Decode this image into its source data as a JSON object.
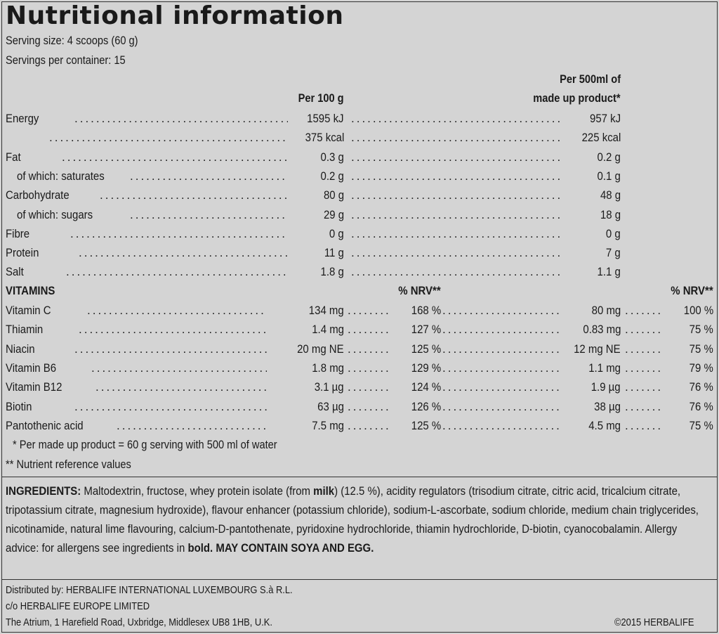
{
  "title": "Nutritional information",
  "serving_size": "Serving size: 4 scoops (60 g)",
  "servings_per_container": "Servings per container: 15",
  "col_headers": {
    "per100": "Per 100 g",
    "per500_line1": "Per 500ml of",
    "per500_line2": "made up product*"
  },
  "nutrients": [
    {
      "label": "Energy",
      "per100": "1595 kJ",
      "per500": "957 kJ",
      "indent": false
    },
    {
      "label": "",
      "per100": "375 kcal",
      "per500": "225 kcal",
      "indent": false
    },
    {
      "label": "Fat",
      "per100": "0.3 g",
      "per500": "0.2 g",
      "indent": false
    },
    {
      "label": "of which: saturates",
      "per100": "0.2 g",
      "per500": "0.1 g",
      "indent": true
    },
    {
      "label": "Carbohydrate",
      "per100": "80 g",
      "per500": "48 g",
      "indent": false
    },
    {
      "label": "of which: sugars",
      "per100": "29 g",
      "per500": "18 g",
      "indent": true
    },
    {
      "label": "Fibre",
      "per100": "0 g",
      "per500": "0 g",
      "indent": false
    },
    {
      "label": "Protein",
      "per100": "11 g",
      "per500": "7 g",
      "indent": false
    },
    {
      "label": "Salt",
      "per100": "1.8 g",
      "per500": "1.1 g",
      "indent": false
    }
  ],
  "vitamins_header": {
    "label": "VITAMINS",
    "nrv1": "% NRV**",
    "nrv2": "% NRV**"
  },
  "vitamins": [
    {
      "label": "Vitamin C",
      "per100": "134 mg",
      "nrv100": "168 %",
      "per500": "80 mg",
      "nrv500": "100 %"
    },
    {
      "label": "Thiamin",
      "per100": "1.4 mg",
      "nrv100": "127 %",
      "per500": "0.83 mg",
      "nrv500": "75 %"
    },
    {
      "label": "Niacin",
      "per100": "20 mg NE",
      "nrv100": "125 %",
      "per500": "12 mg NE",
      "nrv500": "75 %"
    },
    {
      "label": "Vitamin B6",
      "per100": "1.8 mg",
      "nrv100": "129 %",
      "per500": "1.1 mg",
      "nrv500": "79 %"
    },
    {
      "label": "Vitamin B12",
      "per100": "3.1 µg",
      "nrv100": "124 %",
      "per500": "1.9 µg",
      "nrv500": "76 %"
    },
    {
      "label": "Biotin",
      "per100": "63 µg",
      "nrv100": "126 %",
      "per500": "38 µg",
      "nrv500": "76 %"
    },
    {
      "label": "Pantothenic acid",
      "per100": "7.5 mg",
      "nrv100": "125 %",
      "per500": "4.5 mg",
      "nrv500": "75 %"
    }
  ],
  "footnotes": {
    "made_up": "* Per made up product = 60 g serving with 500 ml of water",
    "nrv": "** Nutrient reference values"
  },
  "ingredients": {
    "heading": "INGREDIENTS:",
    "text_a": " Maltodextrin, fructose, whey protein isolate (from ",
    "bold_milk": "milk",
    "text_b": ") (12.5 %), acidity regulators (trisodium citrate, citric acid, tricalcium citrate, tripotassium citrate, magnesium hydroxide), flavour enhancer (potassium chloride), sodium-L-ascorbate, sodium chloride, medium chain triglycerides, nicotinamide, natural lime flavouring, calcium-D-pantothenate, pyridoxine hydrochloride, thiamin hydrochloride, D-biotin, cyanocobalamin. Allergy advice: for allergens see ingredients in ",
    "bold_word": "bold.",
    "warning": " MAY CONTAIN SOYA AND EGG."
  },
  "distributor": {
    "line1": "Distributed by: HERBALIFE INTERNATIONAL LUXEMBOURG S.à R.L.",
    "line2": "c/o HERBALIFE EUROPE LIMITED",
    "line3": "The Atrium, 1 Harefield Road, Uxbridge, Middlesex UB8 1HB, U.K.",
    "copyright": "©2015  HERBALIFE"
  }
}
